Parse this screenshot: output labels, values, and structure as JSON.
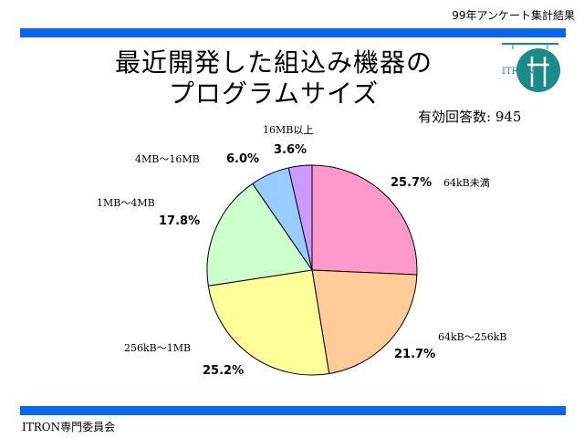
{
  "header": {
    "survey_label": "99年アンケート集計結果"
  },
  "title": {
    "line1": "最近開発した組込み機器の",
    "line2": "プログラムサイズ"
  },
  "respondents": "有効回答数: 945",
  "footer": "ITRON専門委員会",
  "logo": {
    "text": "ITRON"
  },
  "colors": {
    "bar": "#0a64f0"
  },
  "chart_data": {
    "type": "pie",
    "title": "最近開発した組込み機器のプログラムサイズ",
    "start_angle_deg": 90,
    "direction": "clockwise",
    "slices": [
      {
        "label": "64kB未満",
        "value": 25.7,
        "value_label": "25.7%",
        "color": "#ff99cc"
      },
      {
        "label": "64kB～256kB",
        "value": 21.7,
        "value_label": "21.7%",
        "color": "#ffcc99"
      },
      {
        "label": "256kB～1MB",
        "value": 25.2,
        "value_label": "25.2%",
        "color": "#ffff99"
      },
      {
        "label": "1MB～4MB",
        "value": 17.8,
        "value_label": "17.8%",
        "color": "#ccffcc"
      },
      {
        "label": "4MB～16MB",
        "value": 6.0,
        "value_label": "6.0%",
        "color": "#99ccff"
      },
      {
        "label": "16MB以上",
        "value": 3.6,
        "value_label": "3.6%",
        "color": "#cc99ff"
      }
    ]
  }
}
